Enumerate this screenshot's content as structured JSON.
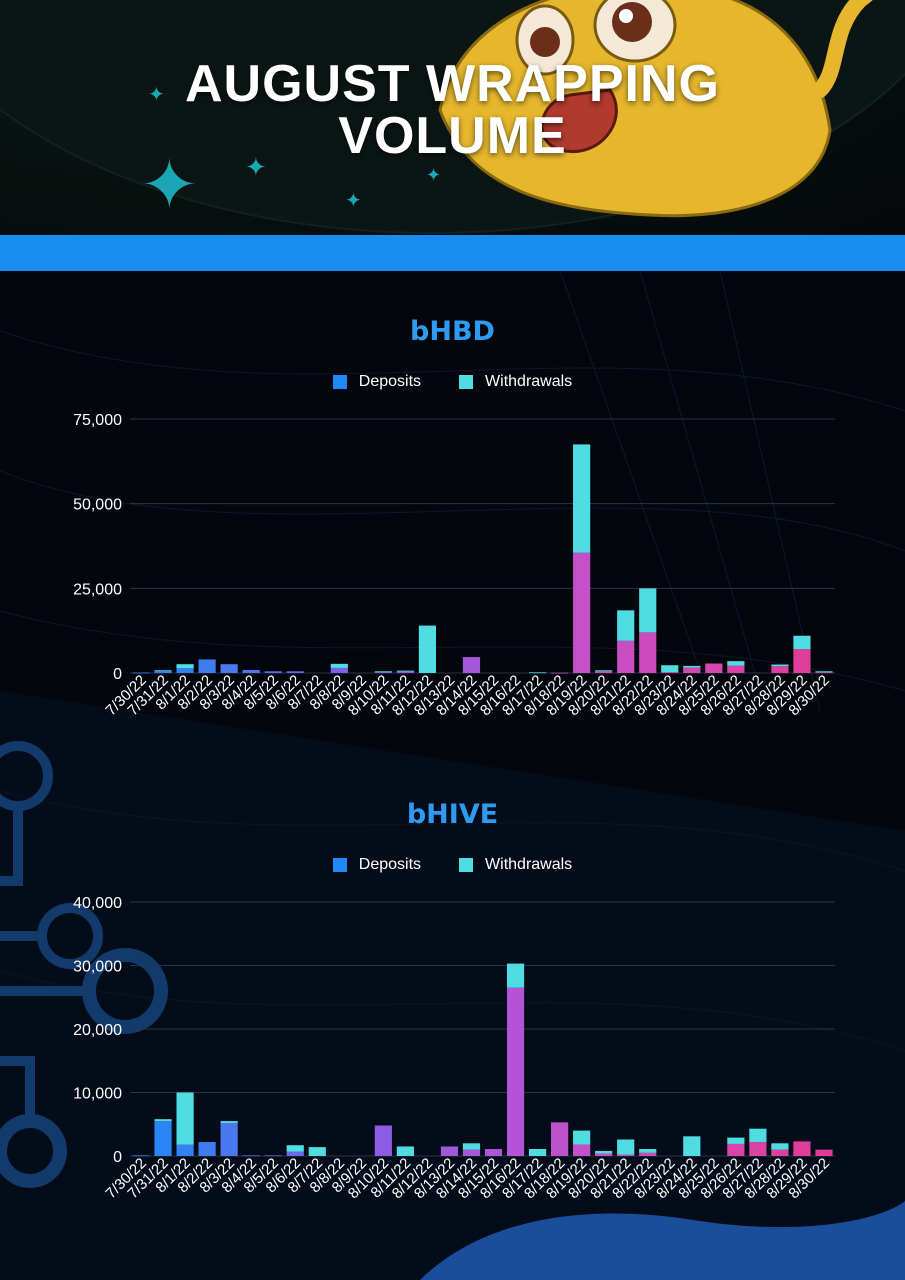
{
  "header": {
    "title_line1": "AUGUST WRAPPING",
    "title_line2": "VOLUME"
  },
  "colors": {
    "band": "#178df2",
    "deposits": "#2189f5",
    "withdrawals": "#4fdde3",
    "title_accent": "#2f9bf0"
  },
  "chart_data": [
    {
      "type": "bar",
      "stacked": true,
      "title": "bHBD",
      "legend": [
        "Deposits",
        "Withdrawals"
      ],
      "legend_position": "top",
      "grid": true,
      "ylim": [
        0,
        75000
      ],
      "yticks": [
        "0",
        "25,000",
        "50,000",
        "75,000"
      ],
      "ytick_values": [
        0,
        25000,
        50000,
        75000
      ],
      "categories": [
        "7/30/22",
        "7/31/22",
        "8/1/22",
        "8/2/22",
        "8/3/22",
        "8/4/22",
        "8/5/22",
        "8/6/22",
        "8/7/22",
        "8/8/22",
        "8/9/22",
        "8/10/22",
        "8/11/22",
        "8/12/22",
        "8/13/22",
        "8/14/22",
        "8/15/22",
        "8/16/22",
        "8/17/22",
        "8/18/22",
        "8/19/22",
        "8/20/22",
        "8/21/22",
        "8/22/22",
        "8/23/22",
        "8/24/22",
        "8/25/22",
        "8/26/22",
        "8/27/22",
        "8/28/22",
        "8/29/22",
        "8/30/22"
      ],
      "series": [
        {
          "name": "Deposits",
          "values": [
            150,
            600,
            1400,
            4000,
            2600,
            900,
            500,
            500,
            0,
            1500,
            0,
            300,
            500,
            0,
            0,
            4700,
            0,
            0,
            0,
            100,
            35500,
            500,
            9500,
            12000,
            300,
            1600,
            2800,
            2200,
            0,
            2000,
            7000,
            200
          ]
        },
        {
          "name": "Withdrawals",
          "values": [
            0,
            200,
            1200,
            0,
            0,
            0,
            0,
            0,
            0,
            1200,
            0,
            200,
            200,
            14000,
            0,
            0,
            0,
            0,
            200,
            0,
            32000,
            300,
            9000,
            13000,
            2000,
            500,
            0,
            1300,
            0,
            500,
            4000,
            300
          ]
        }
      ]
    },
    {
      "type": "bar",
      "stacked": true,
      "title": "bHIVE",
      "legend": [
        "Deposits",
        "Withdrawals"
      ],
      "legend_position": "top",
      "grid": true,
      "ylim": [
        0,
        40000
      ],
      "yticks": [
        "0",
        "10,000",
        "20,000",
        "30,000",
        "40,000"
      ],
      "ytick_values": [
        0,
        10000,
        20000,
        30000,
        40000
      ],
      "categories": [
        "7/30/22",
        "7/31/22",
        "8/1/22",
        "8/2/22",
        "8/3/22",
        "8/4/22",
        "8/5/22",
        "8/6/22",
        "8/7/22",
        "8/8/22",
        "8/9/22",
        "8/10/22",
        "8/11/22",
        "8/12/22",
        "8/13/22",
        "8/14/22",
        "8/15/22",
        "8/16/22",
        "8/17/22",
        "8/18/22",
        "8/19/22",
        "8/20/22",
        "8/21/22",
        "8/22/22",
        "8/23/22",
        "8/24/22",
        "8/25/22",
        "8/26/22",
        "8/27/22",
        "8/28/22",
        "8/29/22",
        "8/30/22"
      ],
      "series": [
        {
          "name": "Deposits",
          "values": [
            100,
            5500,
            1800,
            2200,
            5200,
            100,
            100,
            700,
            0,
            0,
            0,
            4800,
            0,
            0,
            1500,
            1000,
            1100,
            26500,
            0,
            5300,
            1800,
            400,
            200,
            500,
            0,
            0,
            0,
            1900,
            2200,
            1000,
            2300,
            1000
          ]
        },
        {
          "name": "Withdrawals",
          "values": [
            0,
            300,
            8200,
            0,
            300,
            0,
            0,
            1000,
            1400,
            0,
            0,
            0,
            1500,
            0,
            0,
            1000,
            0,
            3800,
            1100,
            0,
            2200,
            400,
            2400,
            600,
            0,
            3100,
            0,
            1000,
            2100,
            1000,
            0,
            0
          ]
        }
      ]
    }
  ]
}
